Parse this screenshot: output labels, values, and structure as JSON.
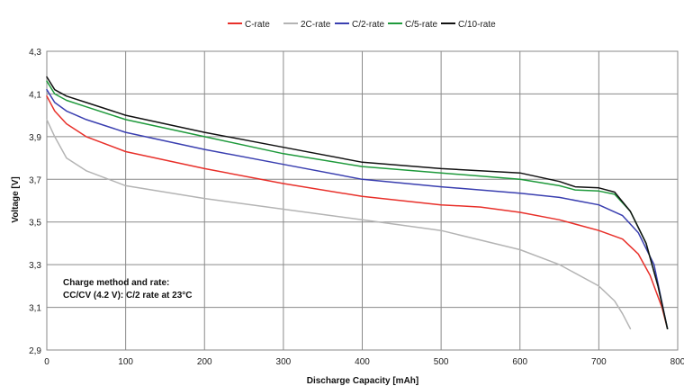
{
  "chart_data": {
    "type": "line",
    "xlabel": "Discharge Capacity [mAh]",
    "ylabel": "Voltage [V]",
    "xlim": [
      0,
      800
    ],
    "ylim": [
      2.9,
      4.3
    ],
    "x_ticks": [
      "0",
      "100",
      "200",
      "300",
      "400",
      "500",
      "600",
      "700",
      "800"
    ],
    "y_ticks": [
      "2,9",
      "3,1",
      "3,3",
      "3,5",
      "3,7",
      "3,9",
      "4,1",
      "4,3"
    ],
    "grid": true,
    "legend_position": "top-center",
    "annotation_lines": [
      "Charge method and rate:",
      "CC/CV (4.2 V): C/2 rate at 23°C"
    ],
    "series": [
      {
        "name": "C-rate",
        "color": "#e8302a",
        "x": [
          0,
          10,
          25,
          50,
          100,
          200,
          300,
          400,
          500,
          550,
          600,
          650,
          700,
          730,
          750,
          765,
          780,
          787
        ],
        "y": [
          4.09,
          4.02,
          3.96,
          3.9,
          3.83,
          3.75,
          3.68,
          3.62,
          3.58,
          3.57,
          3.545,
          3.51,
          3.46,
          3.42,
          3.35,
          3.25,
          3.1,
          3.0
        ]
      },
      {
        "name": "2C-rate",
        "color": "#b4b4b4",
        "x": [
          0,
          10,
          25,
          50,
          100,
          200,
          300,
          400,
          500,
          600,
          650,
          700,
          720,
          730,
          740
        ],
        "y": [
          3.98,
          3.9,
          3.8,
          3.74,
          3.67,
          3.61,
          3.56,
          3.51,
          3.46,
          3.37,
          3.3,
          3.2,
          3.13,
          3.07,
          3.0
        ]
      },
      {
        "name": "C/2-rate",
        "color": "#3a3fb0",
        "x": [
          0,
          10,
          25,
          50,
          100,
          200,
          300,
          400,
          500,
          600,
          650,
          700,
          730,
          750,
          770,
          787
        ],
        "y": [
          4.12,
          4.06,
          4.02,
          3.98,
          3.92,
          3.84,
          3.77,
          3.7,
          3.665,
          3.635,
          3.615,
          3.58,
          3.53,
          3.45,
          3.3,
          3.0
        ]
      },
      {
        "name": "C/5-rate",
        "color": "#1f9a3c",
        "x": [
          0,
          10,
          25,
          50,
          100,
          200,
          300,
          400,
          500,
          600,
          650,
          670,
          700,
          720,
          740,
          760,
          775,
          787
        ],
        "y": [
          4.16,
          4.1,
          4.07,
          4.04,
          3.98,
          3.9,
          3.82,
          3.76,
          3.73,
          3.7,
          3.67,
          3.65,
          3.645,
          3.63,
          3.55,
          3.4,
          3.2,
          3.0
        ]
      },
      {
        "name": "C/10-rate",
        "color": "#111111",
        "x": [
          0,
          10,
          25,
          50,
          100,
          200,
          300,
          400,
          500,
          600,
          650,
          670,
          700,
          720,
          740,
          760,
          775,
          787
        ],
        "y": [
          4.18,
          4.12,
          4.09,
          4.06,
          4.0,
          3.92,
          3.85,
          3.78,
          3.75,
          3.73,
          3.69,
          3.665,
          3.66,
          3.64,
          3.55,
          3.4,
          3.2,
          3.0
        ]
      }
    ]
  }
}
